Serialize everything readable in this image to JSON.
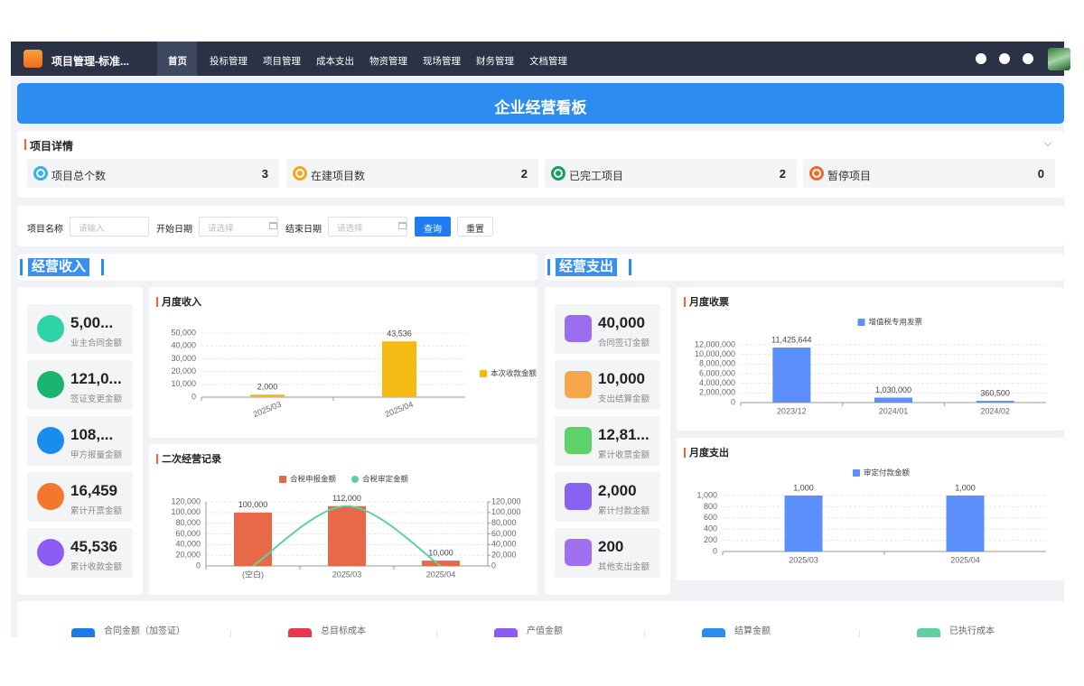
{
  "nav": {
    "brand": "项目管理-标准...",
    "items": [
      "首页",
      "投标管理",
      "项目管理",
      "成本支出",
      "物资管理",
      "现场管理",
      "财务管理",
      "文档管理"
    ]
  },
  "banner": {
    "title": "企业经营看板"
  },
  "project_details": {
    "title": "项目详情",
    "stats": [
      {
        "label": "项目总个数",
        "value": 3
      },
      {
        "label": "在建项目数",
        "value": 2
      },
      {
        "label": "已完工项目",
        "value": 2
      },
      {
        "label": "暂停项目",
        "value": 0
      }
    ]
  },
  "filter": {
    "fields": [
      {
        "label": "项目名称",
        "placeholder": "请输入"
      },
      {
        "label": "开始日期",
        "placeholder": "请选择"
      },
      {
        "label": "结束日期",
        "placeholder": "请选择"
      }
    ],
    "buttons": [
      "查询",
      "重置"
    ]
  },
  "income": {
    "title": "经营收入",
    "kpis": [
      {
        "value": "5,00...",
        "label": "业主合同金额"
      },
      {
        "value": "121,0...",
        "label": "签证变更金额"
      },
      {
        "value": "108,...",
        "label": "甲方报量金额"
      },
      {
        "value": "16,459",
        "label": "累计开票金额"
      },
      {
        "value": "45,536",
        "label": "累计收款金额"
      }
    ]
  },
  "expense": {
    "title": "经营支出",
    "kpis": [
      {
        "value": "40,000",
        "label": "合同签订金额"
      },
      {
        "value": "10,000",
        "label": "支出结算金额"
      },
      {
        "value": "12,81...",
        "label": "累计收票金额"
      },
      {
        "value": "2,000",
        "label": "累计付款金额"
      },
      {
        "value": "200",
        "label": "其他支出金额"
      }
    ]
  },
  "chart_data": [
    {
      "type": "bar",
      "title": "月度收入",
      "categories": [
        "2025/03",
        "2025/04"
      ],
      "series": [
        {
          "name": "本次收款金额",
          "color": "#f5b914",
          "values": [
            2000,
            43536
          ],
          "value_labels": [
            "2,000",
            "43,536"
          ]
        }
      ],
      "ylim": [
        0,
        50000
      ],
      "yticks": [
        0,
        {
          "value": 10000,
          "label": "10,000"
        },
        {
          "value": 20000,
          "label": "20,000"
        },
        {
          "value": 30000,
          "label": "30,000"
        },
        {
          "value": 40000,
          "label": "40,000"
        },
        {
          "value": 50000,
          "label": "50,000"
        }
      ],
      "grid": true,
      "legend": "right"
    },
    {
      "type": "bar",
      "title": "二次经营记录",
      "categories": [
        "(空白)",
        "2025/03",
        "2025/04"
      ],
      "series": [
        {
          "name": "合税申报金额",
          "color": "#e8694a",
          "values": [
            100000,
            112000,
            10000
          ],
          "value_labels": [
            "100,000",
            "112,000",
            "10,000"
          ]
        },
        {
          "name": "合税审定金额",
          "color": "#5ed1a0",
          "type": "line",
          "axis": "y2",
          "values": [
            0,
            112000,
            0
          ]
        }
      ],
      "ylim": [
        0,
        120000
      ],
      "yticks": [
        0,
        {
          "value": 20000,
          "label": "20,000"
        },
        {
          "value": 40000,
          "label": "40,000"
        },
        {
          "value": 60000,
          "label": "60,000"
        },
        {
          "value": 80000,
          "label": "80,000"
        },
        {
          "value": 100000,
          "label": "100,000"
        },
        {
          "value": 120000,
          "label": "120,000"
        }
      ],
      "y2lim": [
        0,
        120000
      ],
      "y2ticks": [
        0,
        {
          "value": 20000,
          "label": "20,000"
        },
        {
          "value": 40000,
          "label": "40,000"
        },
        {
          "value": 60000,
          "label": "60,000"
        },
        {
          "value": 80000,
          "label": "80,000"
        },
        {
          "value": 100000,
          "label": "100,000"
        },
        {
          "value": 120000,
          "label": "120,000"
        }
      ],
      "grid": true,
      "legend": "top"
    },
    {
      "type": "bar",
      "title": "月度收票",
      "categories": [
        "2023/12",
        "2024/01",
        "2024/02"
      ],
      "series": [
        {
          "name": "增值税专用发票",
          "color": "#5b8ff9",
          "values": [
            11425644,
            1030000,
            360500
          ],
          "value_labels": [
            "11,425,644",
            "1,030,000",
            "360,500"
          ]
        }
      ],
      "ylim": [
        0,
        12000000
      ],
      "yticks": [
        0,
        {
          "value": 2000000,
          "label": "2,000,000"
        },
        {
          "value": 4000000,
          "label": "4,000,000"
        },
        {
          "value": 6000000,
          "label": "6,000,000"
        },
        {
          "value": 8000000,
          "label": "8,000,000"
        },
        {
          "value": 10000000,
          "label": "10,000,000"
        },
        {
          "value": 12000000,
          "label": "12,000,000"
        }
      ],
      "grid": true,
      "legend": "top"
    },
    {
      "type": "bar",
      "title": "月度支出",
      "categories": [
        "2025/03",
        "2025/04"
      ],
      "series": [
        {
          "name": "审定付款金额",
          "color": "#5b8ff9",
          "values": [
            1000,
            1000
          ],
          "value_labels": [
            "1,000",
            "1,000"
          ]
        }
      ],
      "ylim": [
        0,
        1000
      ],
      "yticks": [
        0,
        200,
        400,
        600,
        800,
        {
          "value": 1000,
          "label": "1,000"
        }
      ],
      "grid": true,
      "legend": "top"
    }
  ],
  "summary": {
    "items": [
      "合同金额（加签证）",
      "总目标成本",
      "产值金额",
      "结算金额",
      "已执行成本"
    ]
  }
}
